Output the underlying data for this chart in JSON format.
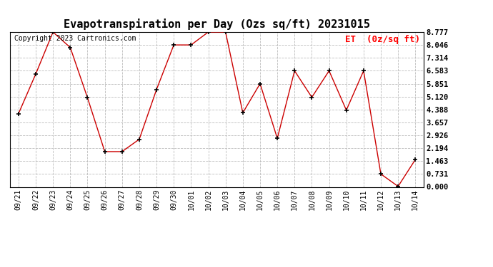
{
  "title": "Evapotranspiration per Day (Ozs sq/ft) 20231015",
  "copyright_text": "Copyright 2023 Cartronics.com",
  "legend_label": "ET  (0z/sq ft)",
  "dates": [
    "09/21",
    "09/22",
    "09/23",
    "09/24",
    "09/25",
    "09/26",
    "09/27",
    "09/28",
    "09/29",
    "09/30",
    "10/01",
    "10/02",
    "10/03",
    "10/04",
    "10/05",
    "10/06",
    "10/07",
    "10/08",
    "10/09",
    "10/10",
    "10/11",
    "10/12",
    "10/13",
    "10/14"
  ],
  "values": [
    4.15,
    6.4,
    8.777,
    7.9,
    5.05,
    2.0,
    2.0,
    2.7,
    5.52,
    8.046,
    8.046,
    8.777,
    8.777,
    4.2,
    5.85,
    2.75,
    6.58,
    5.08,
    6.58,
    4.35,
    6.58,
    0.73,
    0.03,
    1.55
  ],
  "ylim_min": 0.0,
  "ylim_max": 8.777,
  "yticks": [
    0.0,
    0.731,
    1.463,
    2.194,
    2.926,
    3.657,
    4.388,
    5.12,
    5.851,
    6.583,
    7.314,
    8.046,
    8.777
  ],
  "line_color": "#cc0000",
  "marker": "+",
  "marker_color": "#000000",
  "marker_size": 5,
  "marker_linewidth": 1.2,
  "background_color": "#ffffff",
  "grid_color": "#bbbbbb",
  "title_fontsize": 11,
  "copyright_fontsize": 7,
  "legend_fontsize": 9,
  "xtick_fontsize": 7,
  "ytick_fontsize": 7.5
}
